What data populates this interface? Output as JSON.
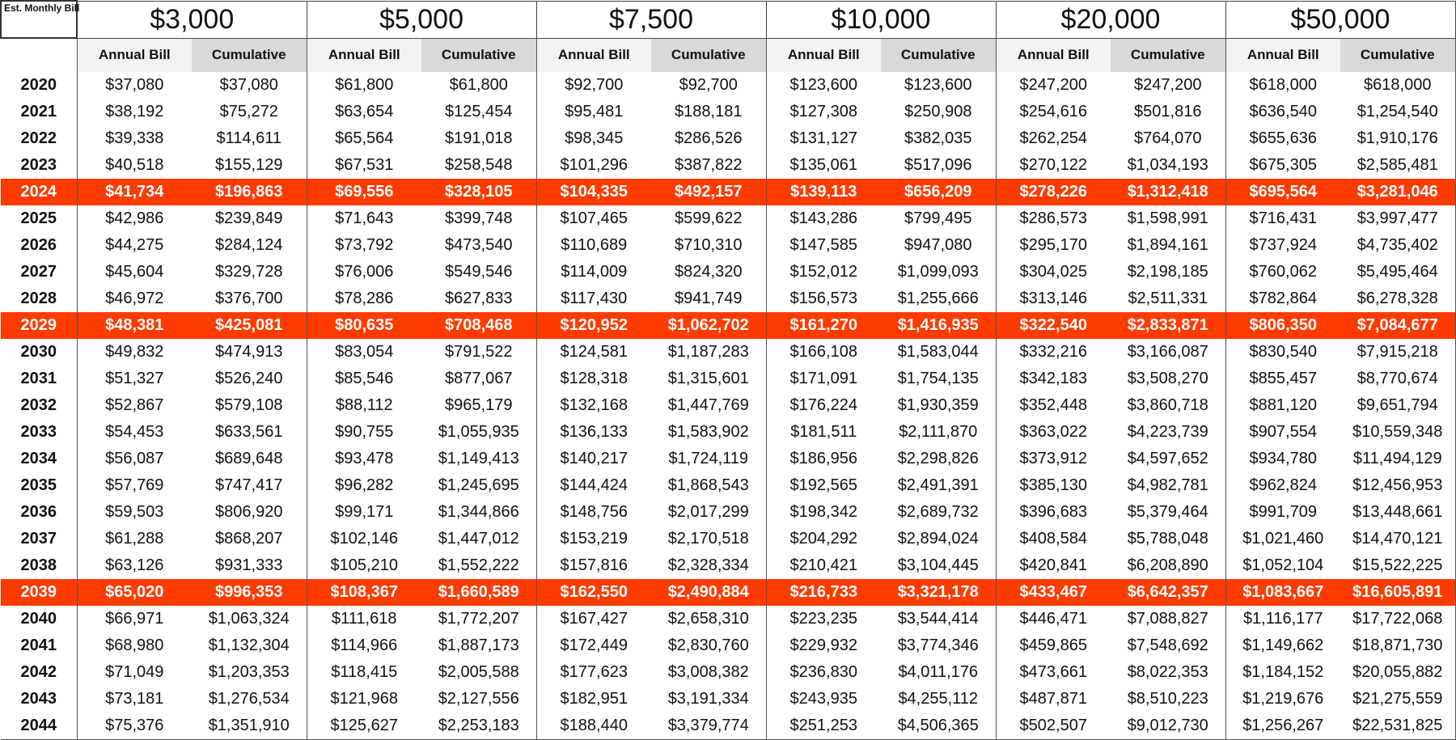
{
  "corner_label": "Est. Monthly Bill",
  "groups": [
    "$3,000",
    "$5,000",
    "$7,500",
    "$10,000",
    "$20,000",
    "$50,000"
  ],
  "subheaders": {
    "annual": "Annual Bill",
    "cumulative": "Cumulative"
  },
  "highlight_color": "#ff3b00",
  "rows": [
    {
      "year": "2020",
      "highlight": false,
      "values": [
        "$37,080",
        "$37,080",
        "$61,800",
        "$61,800",
        "$92,700",
        "$92,700",
        "$123,600",
        "$123,600",
        "$247,200",
        "$247,200",
        "$618,000",
        "$618,000"
      ]
    },
    {
      "year": "2021",
      "highlight": false,
      "values": [
        "$38,192",
        "$75,272",
        "$63,654",
        "$125,454",
        "$95,481",
        "$188,181",
        "$127,308",
        "$250,908",
        "$254,616",
        "$501,816",
        "$636,540",
        "$1,254,540"
      ]
    },
    {
      "year": "2022",
      "highlight": false,
      "values": [
        "$39,338",
        "$114,611",
        "$65,564",
        "$191,018",
        "$98,345",
        "$286,526",
        "$131,127",
        "$382,035",
        "$262,254",
        "$764,070",
        "$655,636",
        "$1,910,176"
      ]
    },
    {
      "year": "2023",
      "highlight": false,
      "values": [
        "$40,518",
        "$155,129",
        "$67,531",
        "$258,548",
        "$101,296",
        "$387,822",
        "$135,061",
        "$517,096",
        "$270,122",
        "$1,034,193",
        "$675,305",
        "$2,585,481"
      ]
    },
    {
      "year": "2024",
      "highlight": true,
      "values": [
        "$41,734",
        "$196,863",
        "$69,556",
        "$328,105",
        "$104,335",
        "$492,157",
        "$139,113",
        "$656,209",
        "$278,226",
        "$1,312,418",
        "$695,564",
        "$3,281,046"
      ]
    },
    {
      "year": "2025",
      "highlight": false,
      "values": [
        "$42,986",
        "$239,849",
        "$71,643",
        "$399,748",
        "$107,465",
        "$599,622",
        "$143,286",
        "$799,495",
        "$286,573",
        "$1,598,991",
        "$716,431",
        "$3,997,477"
      ]
    },
    {
      "year": "2026",
      "highlight": false,
      "values": [
        "$44,275",
        "$284,124",
        "$73,792",
        "$473,540",
        "$110,689",
        "$710,310",
        "$147,585",
        "$947,080",
        "$295,170",
        "$1,894,161",
        "$737,924",
        "$4,735,402"
      ]
    },
    {
      "year": "2027",
      "highlight": false,
      "values": [
        "$45,604",
        "$329,728",
        "$76,006",
        "$549,546",
        "$114,009",
        "$824,320",
        "$152,012",
        "$1,099,093",
        "$304,025",
        "$2,198,185",
        "$760,062",
        "$5,495,464"
      ]
    },
    {
      "year": "2028",
      "highlight": false,
      "values": [
        "$46,972",
        "$376,700",
        "$78,286",
        "$627,833",
        "$117,430",
        "$941,749",
        "$156,573",
        "$1,255,666",
        "$313,146",
        "$2,511,331",
        "$782,864",
        "$6,278,328"
      ]
    },
    {
      "year": "2029",
      "highlight": true,
      "values": [
        "$48,381",
        "$425,081",
        "$80,635",
        "$708,468",
        "$120,952",
        "$1,062,702",
        "$161,270",
        "$1,416,935",
        "$322,540",
        "$2,833,871",
        "$806,350",
        "$7,084,677"
      ]
    },
    {
      "year": "2030",
      "highlight": false,
      "values": [
        "$49,832",
        "$474,913",
        "$83,054",
        "$791,522",
        "$124,581",
        "$1,187,283",
        "$166,108",
        "$1,583,044",
        "$332,216",
        "$3,166,087",
        "$830,540",
        "$7,915,218"
      ]
    },
    {
      "year": "2031",
      "highlight": false,
      "values": [
        "$51,327",
        "$526,240",
        "$85,546",
        "$877,067",
        "$128,318",
        "$1,315,601",
        "$171,091",
        "$1,754,135",
        "$342,183",
        "$3,508,270",
        "$855,457",
        "$8,770,674"
      ]
    },
    {
      "year": "2032",
      "highlight": false,
      "values": [
        "$52,867",
        "$579,108",
        "$88,112",
        "$965,179",
        "$132,168",
        "$1,447,769",
        "$176,224",
        "$1,930,359",
        "$352,448",
        "$3,860,718",
        "$881,120",
        "$9,651,794"
      ]
    },
    {
      "year": "2033",
      "highlight": false,
      "values": [
        "$54,453",
        "$633,561",
        "$90,755",
        "$1,055,935",
        "$136,133",
        "$1,583,902",
        "$181,511",
        "$2,111,870",
        "$363,022",
        "$4,223,739",
        "$907,554",
        "$10,559,348"
      ]
    },
    {
      "year": "2034",
      "highlight": false,
      "values": [
        "$56,087",
        "$689,648",
        "$93,478",
        "$1,149,413",
        "$140,217",
        "$1,724,119",
        "$186,956",
        "$2,298,826",
        "$373,912",
        "$4,597,652",
        "$934,780",
        "$11,494,129"
      ]
    },
    {
      "year": "2035",
      "highlight": false,
      "values": [
        "$57,769",
        "$747,417",
        "$96,282",
        "$1,245,695",
        "$144,424",
        "$1,868,543",
        "$192,565",
        "$2,491,391",
        "$385,130",
        "$4,982,781",
        "$962,824",
        "$12,456,953"
      ]
    },
    {
      "year": "2036",
      "highlight": false,
      "values": [
        "$59,503",
        "$806,920",
        "$99,171",
        "$1,344,866",
        "$148,756",
        "$2,017,299",
        "$198,342",
        "$2,689,732",
        "$396,683",
        "$5,379,464",
        "$991,709",
        "$13,448,661"
      ]
    },
    {
      "year": "2037",
      "highlight": false,
      "values": [
        "$61,288",
        "$868,207",
        "$102,146",
        "$1,447,012",
        "$153,219",
        "$2,170,518",
        "$204,292",
        "$2,894,024",
        "$408,584",
        "$5,788,048",
        "$1,021,460",
        "$14,470,121"
      ]
    },
    {
      "year": "2038",
      "highlight": false,
      "values": [
        "$63,126",
        "$931,333",
        "$105,210",
        "$1,552,222",
        "$157,816",
        "$2,328,334",
        "$210,421",
        "$3,104,445",
        "$420,841",
        "$6,208,890",
        "$1,052,104",
        "$15,522,225"
      ]
    },
    {
      "year": "2039",
      "highlight": true,
      "values": [
        "$65,020",
        "$996,353",
        "$108,367",
        "$1,660,589",
        "$162,550",
        "$2,490,884",
        "$216,733",
        "$3,321,178",
        "$433,467",
        "$6,642,357",
        "$1,083,667",
        "$16,605,891"
      ]
    },
    {
      "year": "2040",
      "highlight": false,
      "values": [
        "$66,971",
        "$1,063,324",
        "$111,618",
        "$1,772,207",
        "$167,427",
        "$2,658,310",
        "$223,235",
        "$3,544,414",
        "$446,471",
        "$7,088,827",
        "$1,116,177",
        "$17,722,068"
      ]
    },
    {
      "year": "2041",
      "highlight": false,
      "values": [
        "$68,980",
        "$1,132,304",
        "$114,966",
        "$1,887,173",
        "$172,449",
        "$2,830,760",
        "$229,932",
        "$3,774,346",
        "$459,865",
        "$7,548,692",
        "$1,149,662",
        "$18,871,730"
      ]
    },
    {
      "year": "2042",
      "highlight": false,
      "values": [
        "$71,049",
        "$1,203,353",
        "$118,415",
        "$2,005,588",
        "$177,623",
        "$3,008,382",
        "$236,830",
        "$4,011,176",
        "$473,661",
        "$8,022,353",
        "$1,184,152",
        "$20,055,882"
      ]
    },
    {
      "year": "2043",
      "highlight": false,
      "values": [
        "$73,181",
        "$1,276,534",
        "$121,968",
        "$2,127,556",
        "$182,951",
        "$3,191,334",
        "$243,935",
        "$4,255,112",
        "$487,871",
        "$8,510,223",
        "$1,219,676",
        "$21,275,559"
      ]
    },
    {
      "year": "2044",
      "highlight": false,
      "values": [
        "$75,376",
        "$1,351,910",
        "$125,627",
        "$2,253,183",
        "$188,440",
        "$3,379,774",
        "$251,253",
        "$4,506,365",
        "$502,507",
        "$9,012,730",
        "$1,256,267",
        "$22,531,825"
      ]
    }
  ]
}
